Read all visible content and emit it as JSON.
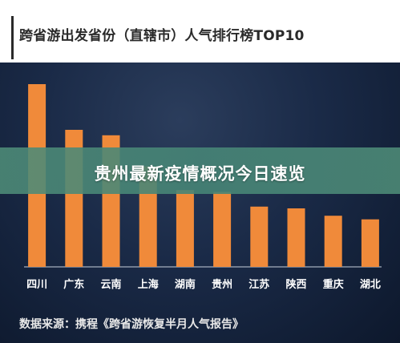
{
  "title": "跨省游出发省份（直辖市）人气排行榜TOP10",
  "banner": "贵州最新疫情概况今日速览",
  "source": "数据来源：携程《跨省游恢复半月人气报告》",
  "colors": {
    "bar": "#f08a3a",
    "baseline": "#c8d0dc",
    "background": "#1a2a47"
  },
  "chart_data": {
    "type": "bar",
    "title": "跨省游出发省份（直辖市）人气排行榜TOP10",
    "xlabel": "",
    "ylabel": "",
    "grid": false,
    "categories": [
      "四川",
      "广东",
      "云南",
      "上海",
      "湖南",
      "贵州",
      "江苏",
      "陕西",
      "重庆",
      "湖北"
    ],
    "values": [
      100,
      75,
      72,
      55,
      42,
      41,
      33,
      32,
      28,
      26
    ],
    "ylim": [
      0,
      100
    ]
  }
}
